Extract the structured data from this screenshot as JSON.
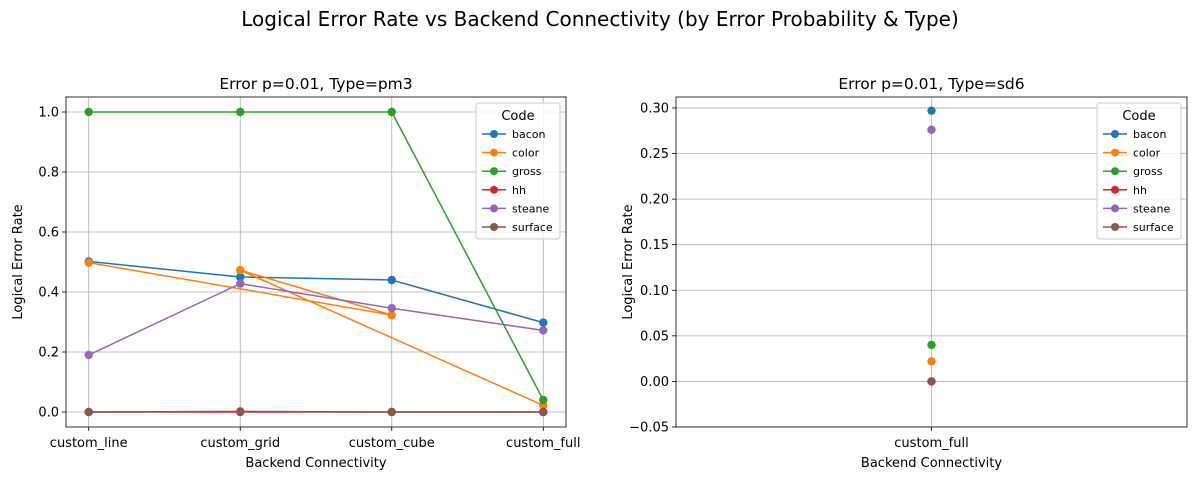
{
  "figure": {
    "suptitle": "Logical Error Rate vs Backend Connectivity (by Error Probability & Type)"
  },
  "colors": {
    "bacon": "#1f77b4",
    "color": "#ff7f0e",
    "gross": "#2ca02c",
    "hh": "#d62728",
    "steane": "#9467bd",
    "surface": "#8c564b"
  },
  "chart_data": [
    {
      "type": "line",
      "title": "Error p=0.01, Type=pm3",
      "xlabel": "Backend Connectivity",
      "ylabel": "Logical Error Rate",
      "categories": [
        "custom_line",
        "custom_grid",
        "custom_cube",
        "custom_full"
      ],
      "ylim": [
        -0.05,
        1.05
      ],
      "yticks": [
        "0.0",
        "0.2",
        "0.4",
        "0.6",
        "0.8",
        "1.0"
      ],
      "grid": true,
      "legend": {
        "title": "Code",
        "placement": "top-right"
      },
      "series": [
        {
          "name": "bacon",
          "points": [
            [
              "custom_line",
              0.502
            ],
            [
              "custom_grid",
              0.45
            ],
            [
              "custom_cube",
              0.44
            ],
            [
              "custom_full",
              0.298
            ]
          ]
        },
        {
          "name": "color",
          "points": [
            [
              "custom_line",
              0.498
            ],
            [
              "custom_cube",
              0.323
            ],
            [
              "custom_grid",
              0.473
            ],
            [
              "custom_full",
              0.022
            ]
          ]
        },
        {
          "name": "gross",
          "points": [
            [
              "custom_line",
              1.0
            ],
            [
              "custom_grid",
              1.0
            ],
            [
              "custom_cube",
              1.0
            ],
            [
              "custom_full",
              0.04
            ]
          ]
        },
        {
          "name": "hh",
          "points": [
            [
              "custom_line",
              0.0
            ],
            [
              "custom_grid",
              0.0
            ],
            [
              "custom_cube",
              0.0
            ],
            [
              "custom_full",
              0.0
            ]
          ]
        },
        {
          "name": "steane",
          "points": [
            [
              "custom_line",
              0.19
            ],
            [
              "custom_grid",
              0.428
            ],
            [
              "custom_cube",
              0.346
            ],
            [
              "custom_full",
              0.272
            ]
          ]
        },
        {
          "name": "surface",
          "points": [
            [
              "custom_line",
              0.0
            ],
            [
              "custom_grid",
              0.002
            ],
            [
              "custom_cube",
              0.0
            ],
            [
              "custom_full",
              0.0
            ]
          ]
        }
      ]
    },
    {
      "type": "line",
      "title": "Error p=0.01, Type=sd6",
      "xlabel": "Backend Connectivity",
      "ylabel": "Logical Error Rate",
      "categories": [
        "custom_full"
      ],
      "ylim": [
        -0.05,
        0.312
      ],
      "yticks": [
        "−0.05",
        "0.00",
        "0.05",
        "0.10",
        "0.15",
        "0.20",
        "0.25",
        "0.30"
      ],
      "grid": true,
      "legend": {
        "title": "Code",
        "placement": "top-right"
      },
      "series": [
        {
          "name": "bacon",
          "points": [
            [
              "custom_full",
              0.297
            ]
          ]
        },
        {
          "name": "color",
          "points": [
            [
              "custom_full",
              0.022
            ]
          ]
        },
        {
          "name": "gross",
          "points": [
            [
              "custom_full",
              0.04
            ]
          ]
        },
        {
          "name": "hh",
          "points": [
            [
              "custom_full",
              0.0
            ]
          ]
        },
        {
          "name": "steane",
          "points": [
            [
              "custom_full",
              0.276
            ]
          ]
        },
        {
          "name": "surface",
          "points": [
            [
              "custom_full",
              0.0
            ]
          ]
        }
      ]
    }
  ]
}
